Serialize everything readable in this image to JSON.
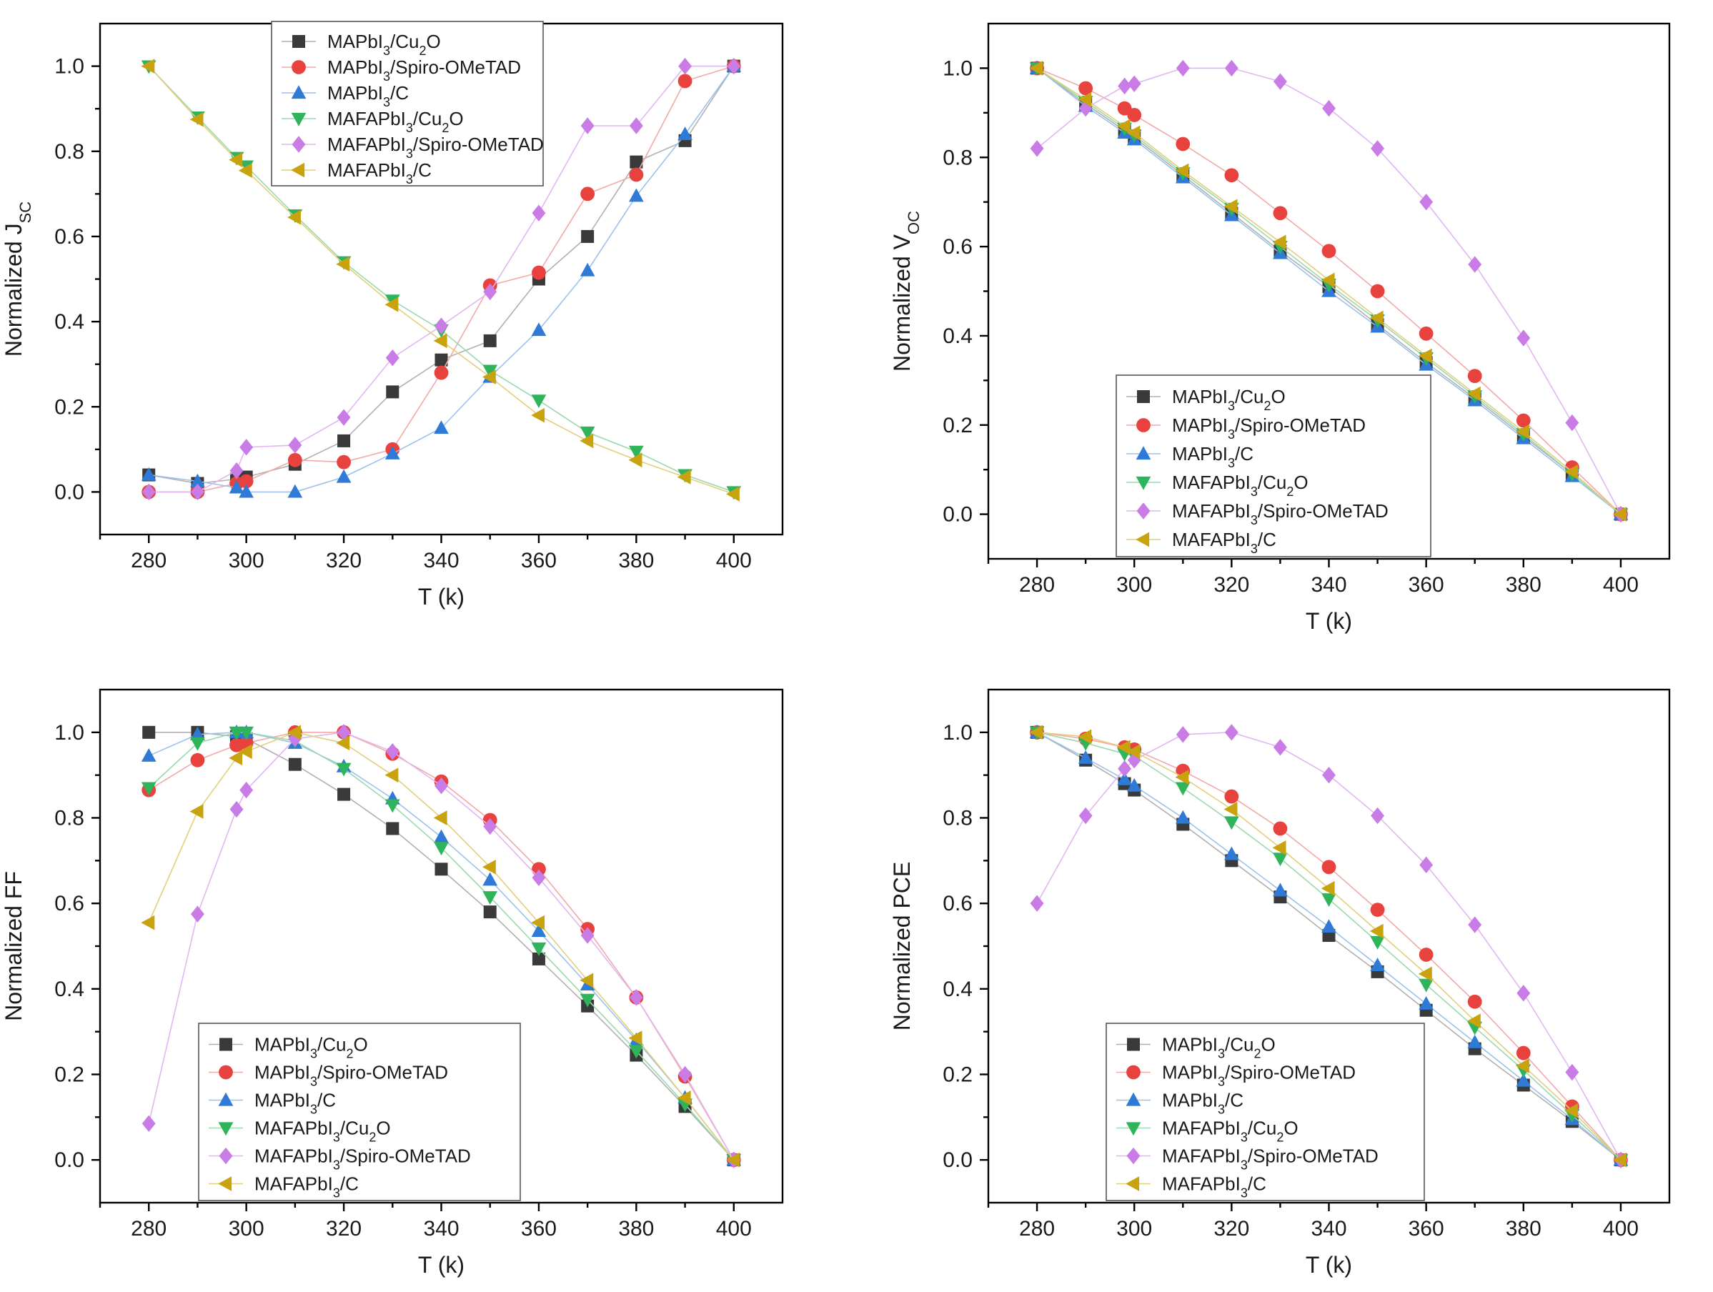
{
  "chart_data": [
    {
      "type": "line",
      "ylabel": "Normalized J",
      "ylabel_sub": "SC",
      "xlabel": "T (k)",
      "xlim": [
        270,
        410
      ],
      "ylim": [
        -0.1,
        1.1
      ],
      "xticks": [
        "280",
        "300",
        "320",
        "340",
        "360",
        "380",
        "400"
      ],
      "yticks": [
        "0.0",
        "0.2",
        "0.4",
        "0.6",
        "0.8",
        "1.0"
      ],
      "legend_position": "top-center",
      "x": [
        280,
        290,
        298,
        300,
        310,
        320,
        330,
        340,
        350,
        360,
        370,
        380,
        390,
        400
      ],
      "series": [
        {
          "name": "MAPbI3/Cu2O",
          "values": [
            0.04,
            0.02,
            0.03,
            0.035,
            0.065,
            0.12,
            0.235,
            0.31,
            0.355,
            0.5,
            0.6,
            0.775,
            0.825,
            1.0
          ]
        },
        {
          "name": "MAPbI3/Spiro-OMeTAD",
          "values": [
            0.0,
            0.0,
            0.02,
            0.025,
            0.075,
            0.07,
            0.1,
            0.28,
            0.485,
            0.515,
            0.7,
            0.745,
            0.965,
            1.0
          ]
        },
        {
          "name": "MAPbI3/C",
          "values": [
            0.04,
            0.025,
            0.01,
            0.0,
            0.0,
            0.035,
            0.09,
            0.15,
            0.27,
            0.38,
            0.52,
            0.695,
            0.84,
            1.0
          ]
        },
        {
          "name": "MAFAPbI3/Cu2O",
          "values": [
            1.0,
            0.88,
            0.785,
            0.765,
            0.65,
            0.54,
            0.45,
            0.38,
            0.285,
            0.215,
            0.14,
            0.095,
            0.04,
            0.0
          ]
        },
        {
          "name": "MAFAPbI3/Spiro-OMeTAD",
          "values": [
            0.0,
            0.0,
            0.05,
            0.105,
            0.11,
            0.175,
            0.315,
            0.39,
            0.47,
            0.655,
            0.86,
            0.86,
            1.0,
            1.0
          ]
        },
        {
          "name": "MAFAPbI3/C",
          "values": [
            1.0,
            0.875,
            0.78,
            0.755,
            0.645,
            0.535,
            0.44,
            0.355,
            0.27,
            0.18,
            0.12,
            0.075,
            0.035,
            -0.005
          ]
        }
      ]
    },
    {
      "type": "line",
      "ylabel": "Normalized V",
      "ylabel_sub": "OC",
      "xlabel": "T (k)",
      "xlim": [
        270,
        410
      ],
      "ylim": [
        -0.1,
        1.1
      ],
      "xticks": [
        "280",
        "300",
        "320",
        "340",
        "360",
        "380",
        "400"
      ],
      "yticks": [
        "0.0",
        "0.2",
        "0.4",
        "0.6",
        "0.8",
        "1.0"
      ],
      "legend_position": "bottom-center",
      "x": [
        280,
        290,
        298,
        300,
        310,
        320,
        330,
        340,
        350,
        360,
        370,
        380,
        390,
        400
      ],
      "series": [
        {
          "name": "MAPbI3/Cu2O",
          "values": [
            1.0,
            0.92,
            0.86,
            0.845,
            0.76,
            0.675,
            0.59,
            0.51,
            0.425,
            0.34,
            0.26,
            0.175,
            0.09,
            0.0
          ]
        },
        {
          "name": "MAPbI3/Spiro-OMeTAD",
          "values": [
            1.0,
            0.955,
            0.91,
            0.895,
            0.83,
            0.76,
            0.675,
            0.59,
            0.5,
            0.405,
            0.31,
            0.21,
            0.105,
            0.0
          ]
        },
        {
          "name": "MAPbI3/C",
          "values": [
            1.0,
            0.915,
            0.855,
            0.84,
            0.755,
            0.67,
            0.585,
            0.5,
            0.42,
            0.335,
            0.255,
            0.17,
            0.085,
            0.0
          ]
        },
        {
          "name": "MAFAPbI3/Cu2O",
          "values": [
            1.0,
            0.925,
            0.865,
            0.85,
            0.765,
            0.685,
            0.6,
            0.515,
            0.435,
            0.35,
            0.265,
            0.18,
            0.09,
            0.0
          ]
        },
        {
          "name": "MAFAPbI3/Spiro-OMeTAD",
          "values": [
            0.82,
            0.91,
            0.96,
            0.965,
            1.0,
            1.0,
            0.97,
            0.91,
            0.82,
            0.7,
            0.56,
            0.395,
            0.205,
            0.0
          ]
        },
        {
          "name": "MAFAPbI3/C",
          "values": [
            1.0,
            0.93,
            0.87,
            0.855,
            0.77,
            0.69,
            0.61,
            0.525,
            0.44,
            0.355,
            0.27,
            0.185,
            0.095,
            0.0
          ]
        }
      ]
    },
    {
      "type": "line",
      "ylabel": "Normalized FF",
      "ylabel_sub": "",
      "xlabel": "T (k)",
      "xlim": [
        270,
        410
      ],
      "ylim": [
        -0.1,
        1.1
      ],
      "xticks": [
        "280",
        "300",
        "320",
        "340",
        "360",
        "380",
        "400"
      ],
      "yticks": [
        "0.0",
        "0.2",
        "0.4",
        "0.6",
        "0.8",
        "1.0"
      ],
      "legend_position": "bottom-center",
      "x": [
        280,
        290,
        298,
        300,
        310,
        320,
        330,
        340,
        350,
        360,
        370,
        380,
        390,
        400
      ],
      "series": [
        {
          "name": "MAPbI3/Cu2O",
          "values": [
            1.0,
            1.0,
            0.99,
            0.985,
            0.925,
            0.855,
            0.775,
            0.68,
            0.58,
            0.47,
            0.36,
            0.245,
            0.125,
            0.0
          ]
        },
        {
          "name": "MAPbI3/Spiro-OMeTAD",
          "values": [
            0.865,
            0.935,
            0.97,
            0.975,
            1.0,
            1.0,
            0.95,
            0.885,
            0.795,
            0.68,
            0.54,
            0.38,
            0.195,
            0.0
          ]
        },
        {
          "name": "MAPbI3/C",
          "values": [
            0.945,
            0.995,
            1.0,
            1.0,
            0.975,
            0.92,
            0.845,
            0.755,
            0.655,
            0.535,
            0.41,
            0.28,
            0.145,
            0.0
          ]
        },
        {
          "name": "MAFAPbI3/Cu2O",
          "values": [
            0.87,
            0.975,
            1.0,
            1.0,
            0.98,
            0.915,
            0.83,
            0.73,
            0.615,
            0.495,
            0.375,
            0.255,
            0.13,
            0.0
          ]
        },
        {
          "name": "MAFAPbI3/Spiro-OMeTAD",
          "values": [
            0.085,
            0.575,
            0.82,
            0.865,
            0.985,
            1.0,
            0.955,
            0.875,
            0.78,
            0.66,
            0.525,
            0.38,
            0.2,
            0.0
          ]
        },
        {
          "name": "MAFAPbI3/C",
          "values": [
            0.555,
            0.815,
            0.94,
            0.955,
            1.0,
            0.975,
            0.9,
            0.8,
            0.685,
            0.555,
            0.42,
            0.285,
            0.145,
            0.0
          ]
        }
      ]
    },
    {
      "type": "line",
      "ylabel": "Normalized PCE",
      "ylabel_sub": "",
      "xlabel": "T (k)",
      "xlim": [
        270,
        410
      ],
      "ylim": [
        -0.1,
        1.1
      ],
      "xticks": [
        "280",
        "300",
        "320",
        "340",
        "360",
        "380",
        "400"
      ],
      "yticks": [
        "0.0",
        "0.2",
        "0.4",
        "0.6",
        "0.8",
        "1.0"
      ],
      "legend_position": "bottom-center",
      "x": [
        280,
        290,
        298,
        300,
        310,
        320,
        330,
        340,
        350,
        360,
        370,
        380,
        390,
        400
      ],
      "series": [
        {
          "name": "MAPbI3/Cu2O",
          "values": [
            1.0,
            0.935,
            0.88,
            0.865,
            0.785,
            0.7,
            0.615,
            0.525,
            0.44,
            0.35,
            0.26,
            0.175,
            0.09,
            0.0
          ]
        },
        {
          "name": "MAPbI3/Spiro-OMeTAD",
          "values": [
            1.0,
            0.985,
            0.965,
            0.96,
            0.91,
            0.85,
            0.775,
            0.685,
            0.585,
            0.48,
            0.37,
            0.25,
            0.125,
            0.0
          ]
        },
        {
          "name": "MAPbI3/C",
          "values": [
            1.0,
            0.94,
            0.89,
            0.875,
            0.8,
            0.715,
            0.63,
            0.545,
            0.455,
            0.365,
            0.275,
            0.185,
            0.095,
            0.0
          ]
        },
        {
          "name": "MAFAPbI3/Cu2O",
          "values": [
            1.0,
            0.975,
            0.95,
            0.945,
            0.87,
            0.79,
            0.705,
            0.61,
            0.51,
            0.41,
            0.31,
            0.21,
            0.105,
            0.0
          ]
        },
        {
          "name": "MAFAPbI3/Spiro-OMeTAD",
          "values": [
            0.6,
            0.805,
            0.915,
            0.935,
            0.995,
            1.0,
            0.965,
            0.9,
            0.805,
            0.69,
            0.55,
            0.39,
            0.205,
            0.0
          ]
        },
        {
          "name": "MAFAPbI3/C",
          "values": [
            1.0,
            0.99,
            0.965,
            0.955,
            0.895,
            0.82,
            0.73,
            0.635,
            0.535,
            0.435,
            0.325,
            0.22,
            0.115,
            0.0
          ]
        }
      ]
    }
  ],
  "legend_labels": [
    {
      "pre": "MAPbI",
      "sub": "3",
      "post": "/Cu",
      "sub2": "2",
      "post2": "O"
    },
    {
      "pre": "MAPbI",
      "sub": "3",
      "post": "/Spiro-OMeTAD",
      "sub2": "",
      "post2": ""
    },
    {
      "pre": "MAPbI",
      "sub": "3",
      "post": "/C",
      "sub2": "",
      "post2": ""
    },
    {
      "pre": "MAFAPbI",
      "sub": "3",
      "post": "/Cu",
      "sub2": "2",
      "post2": "O"
    },
    {
      "pre": "MAFAPbI",
      "sub": "3",
      "post": "/Spiro-OMeTAD",
      "sub2": "",
      "post2": ""
    },
    {
      "pre": "MAFAPbI",
      "sub": "3",
      "post": "/C",
      "sub2": "",
      "post2": ""
    }
  ],
  "series_styles": [
    {
      "marker": "square",
      "color": "#3a3a3a",
      "line": "#b0b0b0"
    },
    {
      "marker": "circle",
      "color": "#e8423f",
      "line": "#f3a9a7"
    },
    {
      "marker": "triangle-up",
      "color": "#2f7ad6",
      "line": "#9cc2ec"
    },
    {
      "marker": "triangle-down",
      "color": "#2fb35b",
      "line": "#9bd9ae"
    },
    {
      "marker": "diamond",
      "color": "#c97be6",
      "line": "#e2b6f3"
    },
    {
      "marker": "triangle-left",
      "color": "#c9a30f",
      "line": "#e3cf7d"
    }
  ]
}
